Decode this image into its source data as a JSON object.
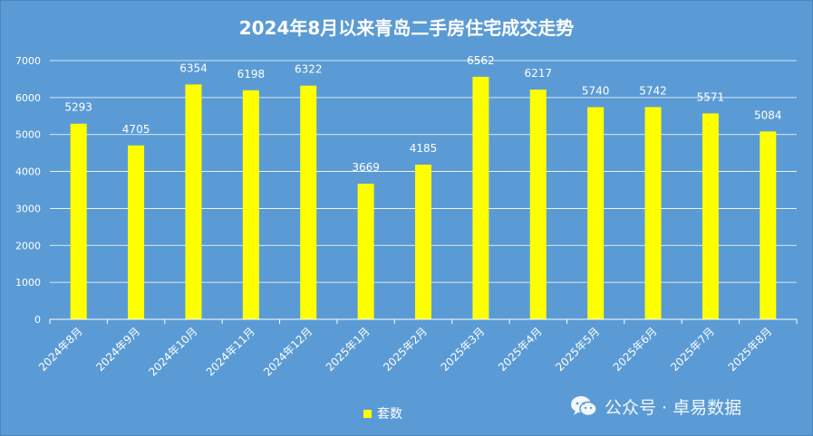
{
  "chart_data": {
    "type": "bar",
    "title": "2024年8月以来青岛二手房住宅成交走势",
    "categories": [
      "2024年8月",
      "2024年9月",
      "2024年10月",
      "2024年11月",
      "2024年12月",
      "2025年1月",
      "2025年2月",
      "2025年3月",
      "2025年4月",
      "2025年5月",
      "2025年6月",
      "2025年7月",
      "2025年8月"
    ],
    "series": [
      {
        "name": "套数",
        "values": [
          5293,
          4705,
          6354,
          6198,
          6322,
          3669,
          4185,
          6562,
          6217,
          5740,
          5742,
          5571,
          5084
        ],
        "color": "#ffff00"
      }
    ],
    "ylim": [
      0,
      7000
    ],
    "yticks": [
      0,
      1000,
      2000,
      3000,
      4000,
      5000,
      6000,
      7000
    ],
    "grid": true,
    "legend_position": "bottom",
    "background_color": "#5b9bd5"
  },
  "watermark": {
    "icon": "wechat-icon",
    "text": "公众号 · 卓易数据"
  }
}
